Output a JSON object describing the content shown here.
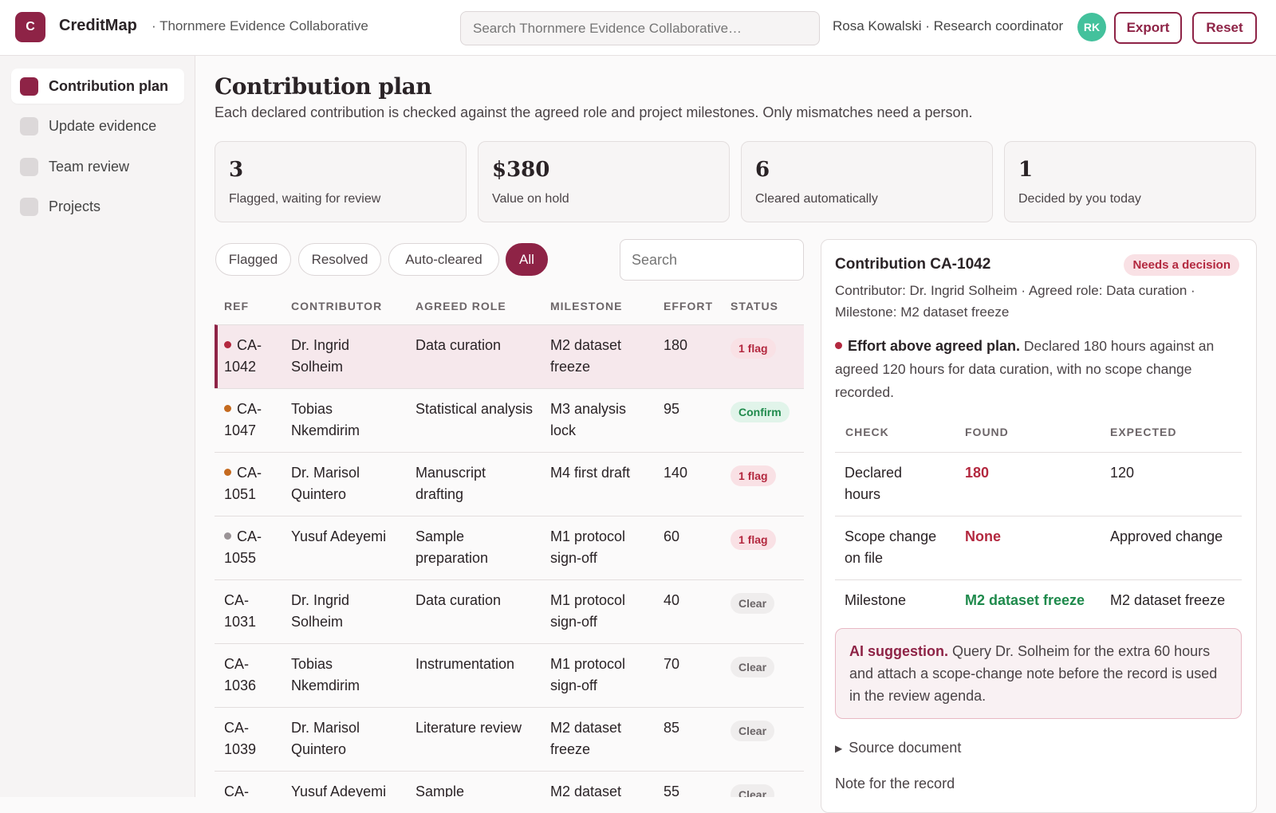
{
  "header": {
    "logo_letter": "C",
    "brand": "CreditMap",
    "org": "· Thornmere Evidence Collaborative",
    "search_placeholder": "Search Thornmere Evidence Collaborative…",
    "user": "Rosa Kowalski · Research coordinator",
    "avatar_initials": "RK",
    "export_label": "Export",
    "reset_label": "Reset"
  },
  "sidebar": {
    "items": [
      {
        "label": "Contribution plan"
      },
      {
        "label": "Update evidence"
      },
      {
        "label": "Team review"
      },
      {
        "label": "Projects"
      }
    ]
  },
  "main": {
    "title": "Contribution plan",
    "subtitle": "Each declared contribution is checked against the agreed role and project milestones. Only mismatches need a person.",
    "stats": [
      {
        "value": "3",
        "label": "Flagged, waiting for review"
      },
      {
        "value": "$380",
        "label": "Value on hold"
      },
      {
        "value": "6",
        "label": "Cleared automatically"
      },
      {
        "value": "1",
        "label": "Decided by you today"
      }
    ],
    "filters": [
      "Flagged",
      "Resolved",
      "Auto-cleared",
      "All"
    ],
    "search_placeholder": "Search",
    "columns": [
      "REF",
      "CONTRIBUTOR",
      "AGREED ROLE",
      "MILESTONE",
      "EFFORT",
      "STATUS"
    ],
    "rows": [
      {
        "ref": "CA-1042",
        "contributor": "Dr. Ingrid Solheim",
        "role": "Data curation",
        "milestone": "M2 dataset freeze",
        "effort": "180",
        "status": "1 flag"
      },
      {
        "ref": "CA-1047",
        "contributor": "Tobias Nkemdirim",
        "role": "Statistical analysis",
        "milestone": "M3 analysis lock",
        "effort": "95",
        "status": "Confirm"
      },
      {
        "ref": "CA-1051",
        "contributor": "Dr. Marisol Quintero",
        "role": "Manuscript drafting",
        "milestone": "M4 first draft",
        "effort": "140",
        "status": "1 flag"
      },
      {
        "ref": "CA-1055",
        "contributor": "Yusuf Adeyemi",
        "role": "Sample preparation",
        "milestone": "M1 protocol sign-off",
        "effort": "60",
        "status": "1 flag"
      },
      {
        "ref": "CA-1031",
        "contributor": "Dr. Ingrid Solheim",
        "role": "Data curation",
        "milestone": "M1 protocol sign-off",
        "effort": "40",
        "status": "Clear"
      },
      {
        "ref": "CA-1036",
        "contributor": "Tobias Nkemdirim",
        "role": "Instrumentation",
        "milestone": "M1 protocol sign-off",
        "effort": "70",
        "status": "Clear"
      },
      {
        "ref": "CA-1039",
        "contributor": "Dr. Marisol Quintero",
        "role": "Literature review",
        "milestone": "M2 dataset freeze",
        "effort": "85",
        "status": "Clear"
      },
      {
        "ref": "CA-",
        "contributor": "Yusuf Adeyemi",
        "role": "Sample",
        "milestone": "M2 dataset",
        "effort": "55",
        "status": "Clear"
      }
    ]
  },
  "detail": {
    "title": "Contribution CA-1042",
    "chip": "Needs a decision",
    "meta": "Contributor: Dr. Ingrid Solheim · Agreed role: Data curation · Milestone: M2 dataset freeze",
    "issue_title": "Effort above agreed plan.",
    "issue_text": " Declared 180 hours against an agreed 120 hours for data curation, with no scope change recorded.",
    "columns": [
      "CHECK",
      "FOUND",
      "EXPECTED"
    ],
    "checks": [
      {
        "check": "Declared hours",
        "found": "180",
        "expected": "120"
      },
      {
        "check": "Scope change on file",
        "found": "None",
        "expected": "Approved change"
      },
      {
        "check": "Milestone",
        "found": "M2 dataset freeze",
        "expected": "M2 dataset freeze"
      }
    ],
    "ai_label": "AI suggestion.",
    "ai_text": " Query Dr. Solheim for the extra 60 hours and attach a scope-change note before the record is used in the review agenda.",
    "source_label": "Source document",
    "note_label": "Note for the record"
  },
  "colors": {
    "accent": "#8e2346",
    "flag": "#b3283f",
    "ok": "#1f8a4c",
    "avatar": "#43c19c"
  }
}
